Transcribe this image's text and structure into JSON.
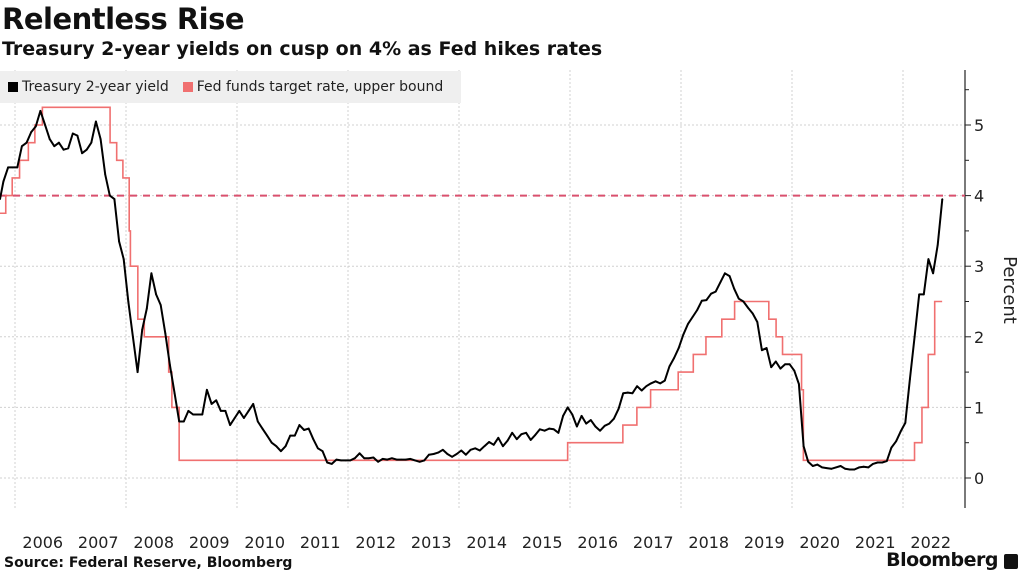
{
  "title": "Relentless Rise",
  "subtitle": "Treasury 2-year yields on cusp on 4% as Fed hikes rates",
  "source": "Source: Federal Reserve, Bloomberg",
  "brand": "Bloomberg",
  "chart_data": {
    "type": "line",
    "title": "Relentless Rise",
    "subtitle": "Treasury 2-year yields on cusp on 4% as Fed hikes rates",
    "ylabel": "Percent",
    "xlabel": "",
    "xlim": [
      "2005-09",
      "2022-09"
    ],
    "ylim": [
      -0.4,
      5.8
    ],
    "y_axis_position": "right",
    "y_ticks": [
      0,
      1,
      2,
      3,
      4,
      5
    ],
    "x_ticks": [
      "2006",
      "2007",
      "2008",
      "2009",
      "2010",
      "2011",
      "2012",
      "2013",
      "2014",
      "2015",
      "2016",
      "2017",
      "2018",
      "2019",
      "2020",
      "2021",
      "2022"
    ],
    "grid": true,
    "legend_position": "top-left",
    "reference_line": {
      "y": 4,
      "style": "dashed",
      "color": "#d9506e"
    },
    "series": [
      {
        "name": "Treasury 2-year yield",
        "color": "#000000",
        "style": "line",
        "x": [
          "2005-09",
          "2005-10",
          "2005-11",
          "2005-12",
          "2006-01",
          "2006-02",
          "2006-03",
          "2006-04",
          "2006-05",
          "2006-06",
          "2006-07",
          "2006-08",
          "2006-09",
          "2006-10",
          "2006-11",
          "2006-12",
          "2007-01",
          "2007-02",
          "2007-03",
          "2007-04",
          "2007-05",
          "2007-06",
          "2007-07",
          "2007-08",
          "2007-09",
          "2007-10",
          "2007-11",
          "2007-12",
          "2008-01",
          "2008-02",
          "2008-03",
          "2008-04",
          "2008-05",
          "2008-06",
          "2008-07",
          "2008-08",
          "2008-09",
          "2008-10",
          "2008-11",
          "2008-12",
          "2009-01",
          "2009-02",
          "2009-03",
          "2009-04",
          "2009-05",
          "2009-06",
          "2009-07",
          "2009-08",
          "2009-09",
          "2009-10",
          "2009-11",
          "2009-12",
          "2010-01",
          "2010-02",
          "2010-03",
          "2010-04",
          "2010-05",
          "2010-06",
          "2010-07",
          "2010-08",
          "2010-09",
          "2010-10",
          "2010-11",
          "2010-12",
          "2011-01",
          "2011-02",
          "2011-03",
          "2011-04",
          "2011-05",
          "2011-06",
          "2011-07",
          "2011-08",
          "2011-09",
          "2011-10",
          "2011-11",
          "2011-12",
          "2012-01",
          "2012-02",
          "2012-03",
          "2012-04",
          "2012-05",
          "2012-06",
          "2012-07",
          "2012-08",
          "2012-09",
          "2012-10",
          "2012-11",
          "2012-12",
          "2013-01",
          "2013-02",
          "2013-03",
          "2013-04",
          "2013-05",
          "2013-06",
          "2013-07",
          "2013-08",
          "2013-09",
          "2013-10",
          "2013-11",
          "2013-12",
          "2014-01",
          "2014-02",
          "2014-03",
          "2014-04",
          "2014-05",
          "2014-06",
          "2014-07",
          "2014-08",
          "2014-09",
          "2014-10",
          "2014-11",
          "2014-12",
          "2015-01",
          "2015-02",
          "2015-03",
          "2015-04",
          "2015-05",
          "2015-06",
          "2015-07",
          "2015-08",
          "2015-09",
          "2015-10",
          "2015-11",
          "2015-12",
          "2016-01",
          "2016-02",
          "2016-03",
          "2016-04",
          "2016-05",
          "2016-06",
          "2016-07",
          "2016-08",
          "2016-09",
          "2016-10",
          "2016-11",
          "2016-12",
          "2017-01",
          "2017-02",
          "2017-03",
          "2017-04",
          "2017-05",
          "2017-06",
          "2017-07",
          "2017-08",
          "2017-09",
          "2017-10",
          "2017-11",
          "2017-12",
          "2018-01",
          "2018-02",
          "2018-03",
          "2018-04",
          "2018-05",
          "2018-06",
          "2018-07",
          "2018-08",
          "2018-09",
          "2018-10",
          "2018-11",
          "2018-12",
          "2019-01",
          "2019-02",
          "2019-03",
          "2019-04",
          "2019-05",
          "2019-06",
          "2019-07",
          "2019-08",
          "2019-09",
          "2019-10",
          "2019-11",
          "2019-12",
          "2020-01",
          "2020-02",
          "2020-03",
          "2020-04",
          "2020-05",
          "2020-06",
          "2020-07",
          "2020-08",
          "2020-09",
          "2020-10",
          "2020-11",
          "2020-12",
          "2021-01",
          "2021-02",
          "2021-03",
          "2021-04",
          "2021-05",
          "2021-06",
          "2021-07",
          "2021-08",
          "2021-09",
          "2021-10",
          "2021-11",
          "2021-12",
          "2022-01",
          "2022-02",
          "2022-03",
          "2022-04",
          "2022-05",
          "2022-06",
          "2022-07",
          "2022-08",
          "2022-09"
        ],
        "values": [
          3.95,
          4.2,
          4.4,
          4.4,
          4.4,
          4.7,
          4.75,
          4.9,
          4.98,
          5.2,
          5.0,
          4.8,
          4.7,
          4.75,
          4.65,
          4.67,
          4.88,
          4.85,
          4.6,
          4.65,
          4.75,
          5.05,
          4.8,
          4.3,
          4.0,
          3.95,
          3.35,
          3.1,
          2.5,
          2.0,
          1.5,
          2.1,
          2.4,
          2.9,
          2.6,
          2.45,
          2.05,
          1.6,
          1.2,
          0.8,
          0.8,
          0.95,
          0.9,
          0.9,
          0.9,
          1.25,
          1.05,
          1.1,
          0.95,
          0.95,
          0.75,
          0.85,
          0.95,
          0.85,
          0.95,
          1.05,
          0.8,
          0.7,
          0.6,
          0.5,
          0.45,
          0.38,
          0.45,
          0.6,
          0.6,
          0.75,
          0.68,
          0.7,
          0.55,
          0.42,
          0.38,
          0.22,
          0.2,
          0.26,
          0.25,
          0.25,
          0.25,
          0.28,
          0.35,
          0.28,
          0.28,
          0.29,
          0.23,
          0.27,
          0.26,
          0.28,
          0.26,
          0.26,
          0.26,
          0.27,
          0.25,
          0.23,
          0.25,
          0.33,
          0.34,
          0.36,
          0.4,
          0.34,
          0.3,
          0.34,
          0.39,
          0.33,
          0.4,
          0.42,
          0.39,
          0.45,
          0.51,
          0.47,
          0.57,
          0.45,
          0.53,
          0.64,
          0.55,
          0.62,
          0.64,
          0.54,
          0.61,
          0.69,
          0.67,
          0.7,
          0.69,
          0.64,
          0.88,
          1.0,
          0.9,
          0.73,
          0.88,
          0.77,
          0.82,
          0.73,
          0.67,
          0.74,
          0.77,
          0.84,
          0.98,
          1.2,
          1.21,
          1.2,
          1.3,
          1.24,
          1.3,
          1.34,
          1.37,
          1.34,
          1.38,
          1.58,
          1.7,
          1.84,
          2.03,
          2.18,
          2.28,
          2.38,
          2.51,
          2.52,
          2.61,
          2.64,
          2.77,
          2.9,
          2.86,
          2.68,
          2.54,
          2.5,
          2.41,
          2.33,
          2.21,
          1.81,
          1.84,
          1.57,
          1.65,
          1.55,
          1.61,
          1.61,
          1.52,
          1.33,
          0.45,
          0.23,
          0.17,
          0.19,
          0.15,
          0.14,
          0.13,
          0.15,
          0.17,
          0.13,
          0.12,
          0.12,
          0.15,
          0.16,
          0.15,
          0.2,
          0.22,
          0.22,
          0.24,
          0.43,
          0.52,
          0.66,
          0.78,
          1.4,
          2.0,
          2.6,
          2.6,
          3.1,
          2.9,
          3.3,
          3.95
        ]
      },
      {
        "name": "Fed funds target rate, upper bound",
        "color": "#f07070",
        "style": "step",
        "x": [
          "2005-09-01",
          "2005-09-20",
          "2005-11-01",
          "2005-12-13",
          "2006-01-31",
          "2006-03-28",
          "2006-05-10",
          "2006-06-29",
          "2007-09-18",
          "2007-10-31",
          "2007-12-11",
          "2008-01-22",
          "2008-01-30",
          "2008-03-18",
          "2008-04-30",
          "2008-10-08",
          "2008-10-29",
          "2008-12-16",
          "2015-12-16",
          "2016-12-14",
          "2017-03-15",
          "2017-06-14",
          "2017-12-13",
          "2018-03-21",
          "2018-06-13",
          "2018-09-26",
          "2018-12-19",
          "2019-07-31",
          "2019-09-18",
          "2019-10-30",
          "2020-03-03",
          "2020-03-15",
          "2022-03-16",
          "2022-05-04",
          "2022-06-15",
          "2022-07-27",
          "2022-09-15"
        ],
        "values": [
          3.75,
          3.75,
          4.0,
          4.25,
          4.5,
          4.75,
          5.0,
          5.25,
          4.75,
          4.5,
          4.25,
          3.5,
          3.0,
          2.25,
          2.0,
          1.5,
          1.0,
          0.25,
          0.5,
          0.75,
          1.0,
          1.25,
          1.5,
          1.75,
          2.0,
          2.25,
          2.5,
          2.25,
          2.0,
          1.75,
          1.25,
          0.25,
          0.5,
          1.0,
          1.75,
          2.5,
          2.5
        ]
      }
    ]
  }
}
